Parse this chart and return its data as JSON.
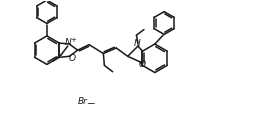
{
  "bg_color": "#ffffff",
  "line_color": "#1a1a1a",
  "line_width": 1.1,
  "font_size": 6.5,
  "fig_width": 2.66,
  "fig_height": 1.33,
  "dpi": 100,
  "xlim": [
    0,
    13.3
  ],
  "ylim": [
    0,
    6.65
  ]
}
